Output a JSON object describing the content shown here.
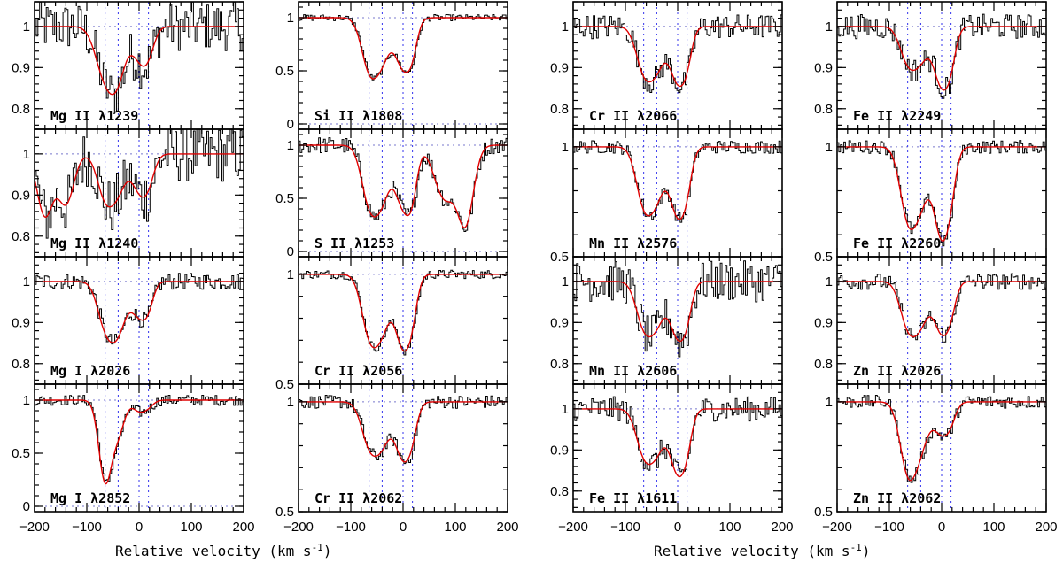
{
  "chart_data": {
    "type": "line",
    "description_units": "normalized flux vs relative velocity",
    "xlabel": "Relative velocity (km s",
    "xlabel_sup": "-1",
    "xlabel_close": ")",
    "xlim": [
      -200,
      200
    ],
    "xticks": [
      -200,
      -100,
      0,
      100,
      200
    ],
    "component_velocities": [
      -65,
      -40,
      0,
      18
    ],
    "columns": [
      {
        "panels": [
          {
            "label": "Mg II λ1239",
            "ylim": [
              0.75,
              1.06
            ],
            "yticks": [
              0.8,
              0.9,
              1
            ],
            "ytick_labels": [
              "0.8",
              "0.9",
              "1"
            ],
            "noise": 0.06,
            "absorption": [
              [
                -65,
                0.12,
                18
              ],
              [
                -40,
                0.1,
                15
              ],
              [
                0,
                0.07,
                15
              ],
              [
                18,
                0.05,
                12
              ]
            ]
          },
          {
            "label": "Mg II λ1240",
            "ylim": [
              0.75,
              1.06
            ],
            "yticks": [
              0.8,
              0.9,
              1
            ],
            "ytick_labels": [
              "0.8",
              "0.9",
              "1"
            ],
            "noise": 0.07,
            "absorption": [
              [
                -180,
                0.15,
                15
              ],
              [
                -140,
                0.12,
                15
              ],
              [
                -65,
                0.1,
                15
              ],
              [
                -40,
                0.08,
                15
              ],
              [
                0,
                0.08,
                15
              ],
              [
                18,
                0.05,
                12
              ]
            ]
          },
          {
            "label": "Mg I λ2026",
            "ylim": [
              0.75,
              1.06
            ],
            "yticks": [
              0.8,
              0.9,
              1
            ],
            "ytick_labels": [
              "0.8",
              "0.9",
              "1"
            ],
            "noise": 0.02,
            "absorption": [
              [
                -65,
                0.1,
                15
              ],
              [
                -40,
                0.11,
                15
              ],
              [
                0,
                0.08,
                15
              ],
              [
                18,
                0.04,
                10
              ]
            ]
          },
          {
            "label": "Mg I λ2852",
            "ylim": [
              -0.05,
              1.15
            ],
            "yticks": [
              0,
              0.5,
              1
            ],
            "ytick_labels": [
              "0",
              "0.5",
              "1"
            ],
            "noise": 0.05,
            "absorption": [
              [
                -65,
                0.75,
                12
              ],
              [
                -40,
                0.3,
                12
              ],
              [
                0,
                0.1,
                12
              ],
              [
                18,
                0.05,
                10
              ]
            ]
          }
        ]
      },
      {
        "panels": [
          {
            "label": "Si II λ1808",
            "ylim": [
              -0.05,
              1.15
            ],
            "yticks": [
              0,
              0.5,
              1
            ],
            "ytick_labels": [
              "0",
              "0.5",
              "1"
            ],
            "noise": 0.03,
            "absorption": [
              [
                -65,
                0.45,
                15
              ],
              [
                -40,
                0.35,
                15
              ],
              [
                0,
                0.45,
                15
              ],
              [
                18,
                0.2,
                10
              ]
            ]
          },
          {
            "label": "S II λ1253",
            "ylim": [
              -0.05,
              1.15
            ],
            "yticks": [
              0,
              0.5,
              1
            ],
            "ytick_labels": [
              "0",
              "0.5",
              "1"
            ],
            "noise": 0.08,
            "absorption": [
              [
                -65,
                0.5,
                15
              ],
              [
                -40,
                0.45,
                15
              ],
              [
                0,
                0.55,
                15
              ],
              [
                18,
                0.3,
                10
              ],
              [
                80,
                0.5,
                20
              ],
              [
                120,
                0.7,
                15
              ]
            ]
          },
          {
            "label": "Cr II λ2056",
            "ylim": [
              0.5,
              1.08
            ],
            "yticks": [
              0.5,
              1
            ],
            "ytick_labels": [
              "0.5",
              "1"
            ],
            "noise": 0.02,
            "absorption": [
              [
                -65,
                0.25,
                15
              ],
              [
                -40,
                0.22,
                15
              ],
              [
                0,
                0.32,
                15
              ],
              [
                18,
                0.1,
                10
              ]
            ]
          },
          {
            "label": "Cr II λ2062",
            "ylim": [
              0.5,
              1.08
            ],
            "yticks": [
              0.5,
              1
            ],
            "ytick_labels": [
              "0.5",
              "1"
            ],
            "noise": 0.03,
            "absorption": [
              [
                -65,
                0.18,
                15
              ],
              [
                -40,
                0.17,
                15
              ],
              [
                0,
                0.25,
                15
              ],
              [
                18,
                0.08,
                10
              ]
            ]
          }
        ]
      },
      {
        "panels": [
          {
            "label": "Cr II λ2066",
            "ylim": [
              0.75,
              1.06
            ],
            "yticks": [
              0.8,
              0.9,
              1
            ],
            "ytick_labels": [
              "0.8",
              "0.9",
              "1"
            ],
            "noise": 0.03,
            "absorption": [
              [
                -65,
                0.1,
                15
              ],
              [
                -40,
                0.09,
                15
              ],
              [
                0,
                0.13,
                15
              ],
              [
                18,
                0.05,
                10
              ]
            ]
          },
          {
            "label": "Mn II λ2576",
            "ylim": [
              0.5,
              1.08
            ],
            "yticks": [
              0.5,
              1
            ],
            "ytick_labels": [
              "0.5",
              "1"
            ],
            "noise": 0.03,
            "absorption": [
              [
                -65,
                0.24,
                15
              ],
              [
                -40,
                0.2,
                15
              ],
              [
                0,
                0.3,
                15
              ],
              [
                18,
                0.1,
                10
              ]
            ]
          },
          {
            "label": "Mn II λ2606",
            "ylim": [
              0.75,
              1.06
            ],
            "yticks": [
              0.8,
              0.9,
              1
            ],
            "ytick_labels": [
              "0.8",
              "0.9",
              "1"
            ],
            "noise": 0.05,
            "absorption": [
              [
                -65,
                0.1,
                15
              ],
              [
                -40,
                0.09,
                15
              ],
              [
                0,
                0.13,
                15
              ],
              [
                18,
                0.05,
                10
              ]
            ]
          },
          {
            "label": "Fe II λ1611",
            "ylim": [
              0.75,
              1.06
            ],
            "yticks": [
              0.8,
              0.9,
              1
            ],
            "ytick_labels": [
              "0.8",
              "0.9",
              "1"
            ],
            "noise": 0.03,
            "absorption": [
              [
                -65,
                0.1,
                15
              ],
              [
                -40,
                0.09,
                15
              ],
              [
                0,
                0.15,
                15
              ],
              [
                18,
                0.05,
                10
              ]
            ]
          }
        ]
      },
      {
        "panels": [
          {
            "label": "Fe II λ2249",
            "ylim": [
              0.75,
              1.06
            ],
            "yticks": [
              0.8,
              0.9,
              1
            ],
            "ytick_labels": [
              "0.8",
              "0.9",
              "1"
            ],
            "noise": 0.03,
            "absorption": [
              [
                -65,
                0.08,
                15
              ],
              [
                -40,
                0.07,
                15
              ],
              [
                0,
                0.14,
                15
              ],
              [
                18,
                0.05,
                10
              ]
            ]
          },
          {
            "label": "Fe II λ2260",
            "ylim": [
              0.5,
              1.08
            ],
            "yticks": [
              0.5,
              1
            ],
            "ytick_labels": [
              "0.5",
              "1"
            ],
            "noise": 0.03,
            "absorption": [
              [
                -65,
                0.3,
                15
              ],
              [
                -40,
                0.22,
                15
              ],
              [
                0,
                0.4,
                15
              ],
              [
                18,
                0.1,
                10
              ]
            ]
          },
          {
            "label": "Zn II λ2026",
            "ylim": [
              0.75,
              1.06
            ],
            "yticks": [
              0.8,
              0.9,
              1
            ],
            "ytick_labels": [
              "0.8",
              "0.9",
              "1"
            ],
            "noise": 0.02,
            "absorption": [
              [
                -65,
                0.1,
                15
              ],
              [
                -40,
                0.09,
                15
              ],
              [
                0,
                0.12,
                15
              ],
              [
                18,
                0.04,
                10
              ]
            ]
          },
          {
            "label": "Zn II λ2062",
            "ylim": [
              0.5,
              1.08
            ],
            "yticks": [
              0.5,
              1
            ],
            "ytick_labels": [
              "0.5",
              "1"
            ],
            "noise": 0.03,
            "absorption": [
              [
                -65,
                0.3,
                15
              ],
              [
                -40,
                0.18,
                15
              ],
              [
                0,
                0.14,
                15
              ],
              [
                18,
                0.05,
                10
              ]
            ]
          }
        ]
      }
    ]
  },
  "colors": {
    "spectrum": "#000000",
    "model": "#e00000",
    "continuum": "#7777cc",
    "components": "#3333ee"
  }
}
